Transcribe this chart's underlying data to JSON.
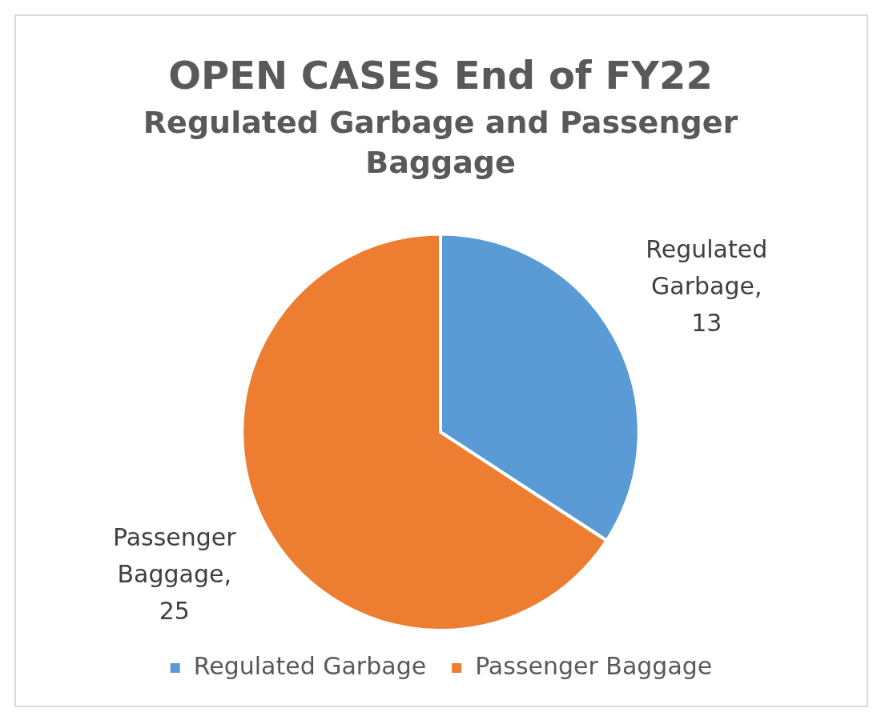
{
  "chart_data": {
    "type": "pie",
    "title": "OPEN CASES End of FY22",
    "subtitle": "Regulated Garbage and Passenger Baggage",
    "categories": [
      "Regulated Garbage",
      "Passenger Baggage"
    ],
    "values": [
      13,
      25
    ],
    "colors": [
      "#5b9bd5",
      "#ed7d31"
    ],
    "value_labels": [
      "Regulated Garbage, 13",
      "Passenger Baggage, 25"
    ],
    "legend": "bottom"
  }
}
